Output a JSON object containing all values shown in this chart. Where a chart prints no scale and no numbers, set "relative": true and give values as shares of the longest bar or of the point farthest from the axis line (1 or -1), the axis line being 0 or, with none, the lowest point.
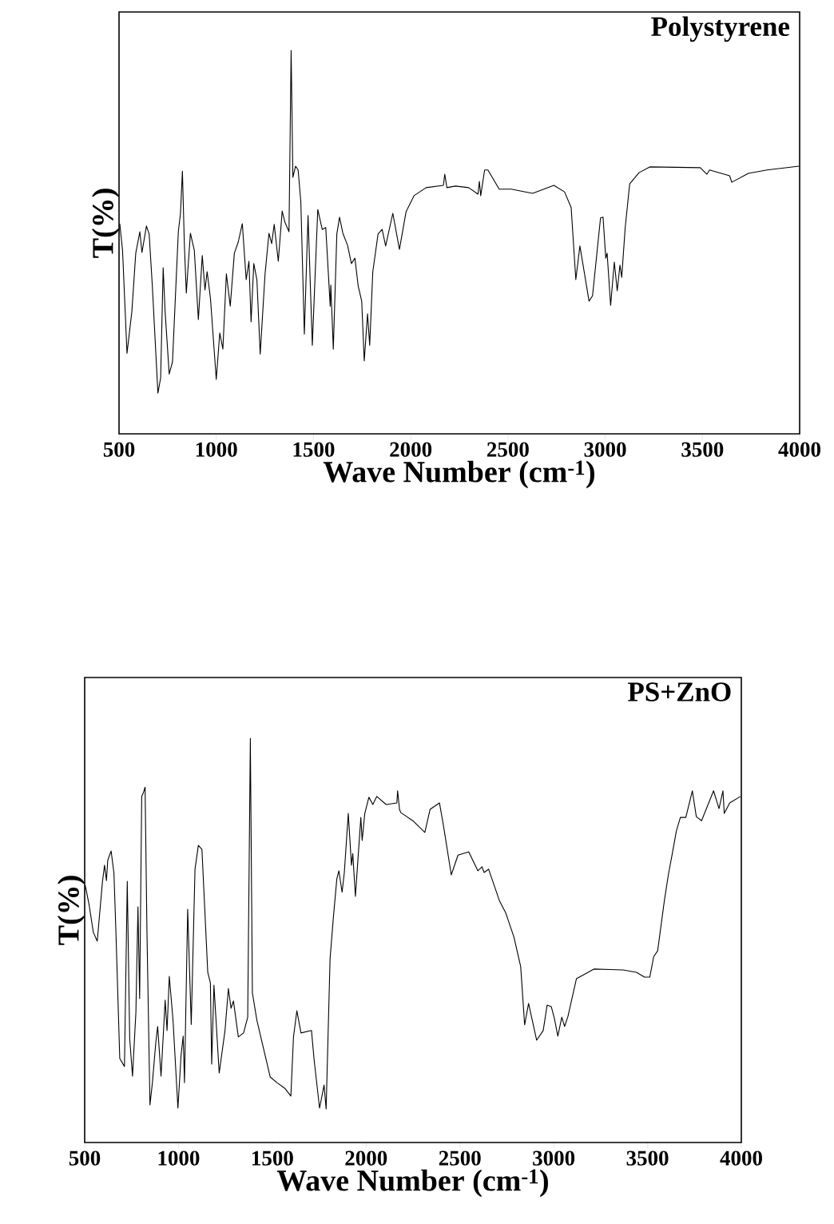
{
  "chart_data": [
    {
      "type": "line",
      "title": "Polystyrene",
      "xlabel": "Wave Number (cm$^{-1}$)",
      "ylabel": "T(%)",
      "relative": true,
      "color": "#000000",
      "xlim": [
        500,
        4000
      ],
      "xticks": [
        500,
        1000,
        1500,
        2000,
        2500,
        3000,
        3500,
        4000
      ],
      "x": [
        504,
        518,
        541,
        566,
        586,
        607,
        618,
        641,
        655,
        671,
        700,
        714,
        727,
        737,
        758,
        775,
        792,
        805,
        816,
        826,
        836,
        846,
        867,
        887,
        908,
        928,
        942,
        953,
        970,
        1000,
        1018,
        1034,
        1052,
        1072,
        1093,
        1113,
        1134,
        1154,
        1168,
        1179,
        1193,
        1209,
        1226,
        1251,
        1271,
        1285,
        1298,
        1319,
        1339,
        1353,
        1374,
        1385,
        1394,
        1408,
        1421,
        1435,
        1453,
        1472,
        1494,
        1522,
        1545,
        1563,
        1586,
        1589,
        1602,
        1620,
        1634,
        1651,
        1675,
        1695,
        1713,
        1730,
        1748,
        1761,
        1778,
        1789,
        1805,
        1832,
        1853,
        1871,
        1908,
        1942,
        1976,
        2017,
        2079,
        2168,
        2175,
        2186,
        2230,
        2298,
        2346,
        2353,
        2360,
        2380,
        2397,
        2455,
        2517,
        2627,
        2736,
        2791,
        2825,
        2849,
        2870,
        2917,
        2935,
        2976,
        2989,
        3003,
        3010,
        3028,
        3047,
        3062,
        3076,
        3085,
        3103,
        3126,
        3174,
        3229,
        3489,
        3523,
        3537,
        3640,
        3651,
        3736,
        3832,
        3996
      ],
      "values": [
        0.548,
        0.479,
        0.21,
        0.319,
        0.471,
        0.527,
        0.473,
        0.542,
        0.521,
        0.388,
        0.106,
        0.146,
        0.433,
        0.319,
        0.156,
        0.188,
        0.381,
        0.527,
        0.575,
        0.685,
        0.492,
        0.367,
        0.523,
        0.479,
        0.298,
        0.465,
        0.375,
        0.423,
        0.354,
        0.142,
        0.263,
        0.221,
        0.417,
        0.333,
        0.471,
        0.5,
        0.548,
        0.402,
        0.45,
        0.292,
        0.444,
        0.402,
        0.208,
        0.417,
        0.523,
        0.496,
        0.546,
        0.45,
        0.581,
        0.552,
        0.527,
        1.0,
        0.669,
        0.698,
        0.688,
        0.604,
        0.26,
        0.569,
        0.231,
        0.585,
        0.533,
        0.538,
        0.333,
        0.388,
        0.221,
        0.521,
        0.565,
        0.523,
        0.492,
        0.444,
        0.458,
        0.385,
        0.346,
        0.19,
        0.313,
        0.231,
        0.423,
        0.521,
        0.533,
        0.49,
        0.575,
        0.481,
        0.579,
        0.621,
        0.642,
        0.648,
        0.677,
        0.642,
        0.646,
        0.642,
        0.625,
        0.658,
        0.621,
        0.688,
        0.688,
        0.638,
        0.638,
        0.627,
        0.648,
        0.631,
        0.59,
        0.402,
        0.49,
        0.346,
        0.36,
        0.563,
        0.565,
        0.458,
        0.471,
        0.335,
        0.448,
        0.373,
        0.44,
        0.408,
        0.538,
        0.652,
        0.681,
        0.696,
        0.694,
        0.677,
        0.688,
        0.673,
        0.656,
        0.679,
        0.688,
        0.698
      ]
    },
    {
      "type": "line",
      "title": "PS+ZnO",
      "xlabel": "Wave Number (cm$^{-1}$)",
      "ylabel": "T(%)",
      "relative": true,
      "color": "#000000",
      "xlim": [
        500,
        4000
      ],
      "xticks": [
        500,
        1000,
        1500,
        2000,
        2500,
        3000,
        3500,
        4000
      ],
      "x": [
        503,
        524,
        546,
        567,
        595,
        606,
        616,
        623,
        641,
        656,
        666,
        687,
        712,
        727,
        740,
        755,
        773,
        784,
        793,
        804,
        812,
        822,
        832,
        848,
        861,
        879,
        889,
        907,
        929,
        939,
        951,
        971,
        997,
        1014,
        1025,
        1032,
        1049,
        1068,
        1088,
        1106,
        1125,
        1156,
        1170,
        1177,
        1189,
        1217,
        1248,
        1266,
        1280,
        1293,
        1319,
        1347,
        1369,
        1383,
        1394,
        1418,
        1454,
        1489,
        1525,
        1567,
        1599,
        1613,
        1631,
        1653,
        1709,
        1723,
        1752,
        1776,
        1787,
        1808,
        1826,
        1844,
        1855,
        1872,
        1884,
        1905,
        1922,
        1929,
        1943,
        1972,
        1979,
        1993,
        2015,
        2036,
        2057,
        2107,
        2164,
        2168,
        2178,
        2185,
        2249,
        2313,
        2341,
        2391,
        2412,
        2454,
        2490,
        2547,
        2596,
        2618,
        2629,
        2653,
        2710,
        2745,
        2788,
        2824,
        2845,
        2866,
        2909,
        2944,
        2965,
        2987,
        3004,
        3022,
        3043,
        3058,
        3076,
        3100,
        3121,
        3214,
        3370,
        3441,
        3484,
        3512,
        3533,
        3554,
        3590,
        3611,
        3633,
        3654,
        3675,
        3704,
        3739,
        3760,
        3788,
        3852,
        3881,
        3902,
        3909,
        3938,
        3995
      ],
      "values": [
        0.636,
        0.587,
        0.52,
        0.498,
        0.646,
        0.686,
        0.648,
        0.698,
        0.721,
        0.666,
        0.528,
        0.208,
        0.188,
        0.646,
        0.257,
        0.164,
        0.322,
        0.583,
        0.356,
        0.856,
        0.864,
        0.879,
        0.52,
        0.093,
        0.148,
        0.247,
        0.287,
        0.164,
        0.352,
        0.277,
        0.411,
        0.302,
        0.085,
        0.217,
        0.263,
        0.148,
        0.577,
        0.292,
        0.676,
        0.735,
        0.725,
        0.421,
        0.395,
        0.194,
        0.389,
        0.172,
        0.277,
        0.381,
        0.332,
        0.35,
        0.261,
        0.271,
        0.31,
        1.0,
        0.37,
        0.302,
        0.231,
        0.162,
        0.148,
        0.134,
        0.115,
        0.261,
        0.326,
        0.271,
        0.277,
        0.204,
        0.085,
        0.142,
        0.083,
        0.455,
        0.559,
        0.652,
        0.672,
        0.619,
        0.668,
        0.814,
        0.686,
        0.715,
        0.609,
        0.804,
        0.747,
        0.814,
        0.854,
        0.836,
        0.856,
        0.836,
        0.84,
        0.87,
        0.824,
        0.816,
        0.796,
        0.767,
        0.824,
        0.84,
        0.785,
        0.662,
        0.711,
        0.719,
        0.672,
        0.682,
        0.668,
        0.676,
        0.599,
        0.567,
        0.508,
        0.435,
        0.291,
        0.344,
        0.253,
        0.277,
        0.34,
        0.336,
        0.306,
        0.263,
        0.31,
        0.287,
        0.312,
        0.362,
        0.405,
        0.429,
        0.427,
        0.421,
        0.409,
        0.409,
        0.46,
        0.474,
        0.599,
        0.662,
        0.717,
        0.771,
        0.804,
        0.804,
        0.87,
        0.806,
        0.796,
        0.87,
        0.826,
        0.87,
        0.814,
        0.84,
        0.856
      ]
    }
  ]
}
